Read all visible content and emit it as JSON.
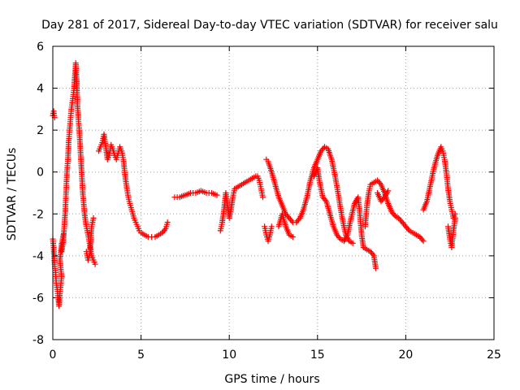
{
  "chart_data": {
    "type": "scatter",
    "title": "Day 281 of 2017, Sidereal Day-to-day VTEC variation (SDTVAR) for receiver salu",
    "xlabel": "GPS time / hours",
    "ylabel": "SDTVAR / TECUs",
    "xlim": [
      0,
      25
    ],
    "ylim": [
      -8,
      6
    ],
    "xticks": [
      "0",
      "5",
      "10",
      "15",
      "20",
      "25"
    ],
    "yticks": [
      "-8",
      "-6",
      "-4",
      "-2",
      "0",
      "2",
      "4",
      "6"
    ],
    "grid": true,
    "marker": "+",
    "color": "#ff0000",
    "series": [
      {
        "name": "SDTVAR",
        "segments": [
          [
            [
              0.0,
              2.7
            ],
            [
              0.05,
              2.9
            ],
            [
              0.1,
              2.6
            ]
          ],
          [
            [
              0.0,
              -3.2
            ],
            [
              0.05,
              -3.6
            ],
            [
              0.1,
              -4.4
            ],
            [
              0.15,
              -4.8
            ],
            [
              0.2,
              -5.3
            ],
            [
              0.25,
              -5.6
            ],
            [
              0.3,
              -6.0
            ],
            [
              0.35,
              -6.4
            ],
            [
              0.4,
              -5.8
            ],
            [
              0.45,
              -5.4
            ],
            [
              0.5,
              -5.0
            ],
            [
              0.4,
              -4.2
            ],
            [
              0.5,
              -3.4
            ],
            [
              0.6,
              -3.0
            ]
          ],
          [
            [
              0.5,
              -3.8
            ],
            [
              0.6,
              -3.2
            ],
            [
              0.7,
              -2.0
            ],
            [
              0.75,
              -1.0
            ],
            [
              0.8,
              0.0
            ],
            [
              0.85,
              0.5
            ],
            [
              0.9,
              1.5
            ],
            [
              0.95,
              2.0
            ],
            [
              1.0,
              2.5
            ],
            [
              1.05,
              3.0
            ],
            [
              1.1,
              3.3
            ],
            [
              1.15,
              3.6
            ],
            [
              1.2,
              4.0
            ],
            [
              1.25,
              4.6
            ],
            [
              1.3,
              5.2
            ],
            [
              1.35,
              4.4
            ],
            [
              1.4,
              3.2
            ],
            [
              1.45,
              2.5
            ],
            [
              1.5,
              2.0
            ],
            [
              1.6,
              0.5
            ],
            [
              1.7,
              -1.0
            ],
            [
              1.8,
              -2.0
            ],
            [
              1.9,
              -2.6
            ],
            [
              2.0,
              -3.0
            ],
            [
              2.1,
              -3.5
            ],
            [
              2.2,
              -4.0
            ],
            [
              2.3,
              -4.2
            ],
            [
              2.4,
              -4.4
            ]
          ],
          [
            [
              1.9,
              -3.8
            ],
            [
              2.0,
              -4.2
            ],
            [
              2.1,
              -3.9
            ],
            [
              2.2,
              -2.6
            ],
            [
              2.3,
              -2.2
            ]
          ],
          [
            [
              2.6,
              1.0
            ],
            [
              2.7,
              1.2
            ],
            [
              2.8,
              1.4
            ],
            [
              2.9,
              1.8
            ],
            [
              3.0,
              1.2
            ],
            [
              3.1,
              0.6
            ],
            [
              3.2,
              0.8
            ],
            [
              3.3,
              1.3
            ],
            [
              3.4,
              1.1
            ],
            [
              3.5,
              0.8
            ],
            [
              3.6,
              0.6
            ],
            [
              3.7,
              0.9
            ],
            [
              3.8,
              1.2
            ],
            [
              3.9,
              1.0
            ],
            [
              4.0,
              0.6
            ],
            [
              4.1,
              -0.2
            ],
            [
              4.2,
              -0.8
            ],
            [
              4.3,
              -1.3
            ],
            [
              4.4,
              -1.6
            ],
            [
              4.5,
              -1.9
            ],
            [
              4.6,
              -2.2
            ],
            [
              4.7,
              -2.4
            ],
            [
              4.8,
              -2.6
            ],
            [
              4.9,
              -2.8
            ],
            [
              5.0,
              -2.9
            ],
            [
              5.2,
              -3.0
            ],
            [
              5.4,
              -3.1
            ],
            [
              5.6,
              -3.1
            ],
            [
              5.8,
              -3.1
            ],
            [
              6.0,
              -3.0
            ],
            [
              6.2,
              -2.9
            ],
            [
              6.4,
              -2.7
            ],
            [
              6.5,
              -2.4
            ]
          ],
          [
            [
              6.9,
              -1.2
            ],
            [
              7.2,
              -1.2
            ],
            [
              7.5,
              -1.1
            ],
            [
              7.8,
              -1.0
            ],
            [
              8.1,
              -1.0
            ],
            [
              8.4,
              -0.9
            ],
            [
              8.7,
              -1.0
            ],
            [
              9.0,
              -1.0
            ],
            [
              9.3,
              -1.1
            ]
          ],
          [
            [
              9.5,
              -2.8
            ],
            [
              9.6,
              -2.4
            ],
            [
              9.7,
              -1.8
            ],
            [
              9.8,
              -1.0
            ],
            [
              9.9,
              -1.6
            ],
            [
              10.0,
              -2.2
            ],
            [
              10.1,
              -1.8
            ],
            [
              10.2,
              -1.2
            ],
            [
              10.3,
              -0.8
            ],
            [
              10.5,
              -0.7
            ],
            [
              10.7,
              -0.6
            ],
            [
              10.9,
              -0.5
            ],
            [
              11.1,
              -0.4
            ],
            [
              11.3,
              -0.3
            ],
            [
              11.5,
              -0.2
            ],
            [
              11.6,
              -0.2
            ],
            [
              11.7,
              -0.4
            ],
            [
              11.8,
              -0.8
            ],
            [
              11.9,
              -1.2
            ]
          ],
          [
            [
              12.0,
              -2.6
            ],
            [
              12.1,
              -3.0
            ],
            [
              12.2,
              -3.3
            ],
            [
              12.3,
              -3.0
            ],
            [
              12.4,
              -2.6
            ]
          ],
          [
            [
              12.1,
              0.6
            ],
            [
              12.2,
              0.5
            ],
            [
              12.4,
              0.0
            ],
            [
              12.6,
              -0.6
            ],
            [
              12.8,
              -1.2
            ],
            [
              13.0,
              -1.6
            ],
            [
              13.2,
              -2.0
            ],
            [
              13.4,
              -2.2
            ],
            [
              13.6,
              -2.4
            ],
            [
              13.8,
              -2.4
            ],
            [
              14.0,
              -2.2
            ],
            [
              14.2,
              -1.8
            ],
            [
              14.4,
              -1.2
            ],
            [
              14.6,
              -0.4
            ],
            [
              14.8,
              0.2
            ],
            [
              15.0,
              0.6
            ],
            [
              15.2,
              1.0
            ],
            [
              15.4,
              1.2
            ],
            [
              15.6,
              1.1
            ],
            [
              15.8,
              0.6
            ],
            [
              16.0,
              -0.2
            ],
            [
              16.2,
              -1.2
            ],
            [
              16.4,
              -2.2
            ],
            [
              16.6,
              -3.0
            ],
            [
              16.8,
              -3.3
            ],
            [
              17.0,
              -3.4
            ]
          ],
          [
            [
              12.8,
              -2.6
            ],
            [
              13.0,
              -2.0
            ],
            [
              13.2,
              -2.6
            ],
            [
              13.4,
              -3.0
            ],
            [
              13.6,
              -3.1
            ]
          ],
          [
            [
              14.8,
              -0.2
            ],
            [
              15.0,
              0.2
            ],
            [
              15.1,
              -0.4
            ],
            [
              15.3,
              -1.2
            ],
            [
              15.5,
              -1.4
            ],
            [
              15.7,
              -2.0
            ],
            [
              15.9,
              -2.6
            ],
            [
              16.1,
              -3.0
            ],
            [
              16.3,
              -3.2
            ],
            [
              16.5,
              -3.3
            ],
            [
              16.7,
              -3.0
            ],
            [
              16.9,
              -2.2
            ],
            [
              17.1,
              -1.5
            ],
            [
              17.3,
              -1.2
            ],
            [
              17.4,
              -2.0
            ],
            [
              17.5,
              -3.0
            ],
            [
              17.6,
              -3.6
            ],
            [
              17.8,
              -3.7
            ],
            [
              18.0,
              -3.8
            ],
            [
              18.2,
              -4.0
            ],
            [
              18.3,
              -4.6
            ]
          ],
          [
            [
              17.7,
              -2.6
            ],
            [
              17.8,
              -1.6
            ],
            [
              17.9,
              -1.0
            ],
            [
              18.0,
              -0.6
            ],
            [
              18.2,
              -0.5
            ],
            [
              18.4,
              -0.4
            ],
            [
              18.6,
              -0.6
            ],
            [
              18.8,
              -1.0
            ],
            [
              19.0,
              -1.5
            ],
            [
              19.2,
              -1.9
            ],
            [
              19.4,
              -2.1
            ],
            [
              19.6,
              -2.2
            ],
            [
              19.8,
              -2.4
            ],
            [
              20.0,
              -2.6
            ],
            [
              20.2,
              -2.8
            ],
            [
              20.4,
              -2.9
            ],
            [
              20.6,
              -3.0
            ],
            [
              20.8,
              -3.1
            ],
            [
              21.0,
              -3.3
            ]
          ],
          [
            [
              18.4,
              -1.0
            ],
            [
              18.6,
              -1.4
            ],
            [
              18.8,
              -1.2
            ],
            [
              19.0,
              -0.9
            ]
          ],
          [
            [
              21.0,
              -1.8
            ],
            [
              21.2,
              -1.4
            ],
            [
              21.4,
              -0.6
            ],
            [
              21.6,
              0.2
            ],
            [
              21.8,
              0.8
            ],
            [
              22.0,
              1.2
            ],
            [
              22.1,
              1.0
            ],
            [
              22.2,
              0.6
            ],
            [
              22.3,
              0.0
            ],
            [
              22.4,
              -0.8
            ],
            [
              22.5,
              -1.4
            ],
            [
              22.6,
              -1.8
            ],
            [
              22.7,
              -2.2
            ],
            [
              22.8,
              -2.0
            ]
          ],
          [
            [
              22.4,
              -2.6
            ],
            [
              22.5,
              -3.2
            ],
            [
              22.6,
              -3.6
            ],
            [
              22.7,
              -2.8
            ],
            [
              22.8,
              -2.2
            ]
          ]
        ]
      }
    ]
  }
}
